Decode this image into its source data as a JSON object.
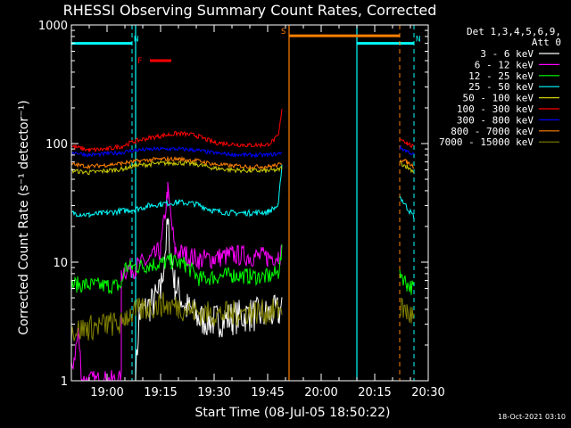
{
  "chart_data": {
    "type": "line",
    "title": "RHESSI Observing Summary Count Rates, Corrected",
    "xlabel": "Start Time (08-Jul-05 18:50:22)",
    "ylabel": "Corrected Count Rate (s⁻¹ detector⁻¹)",
    "ylog": true,
    "ylim": [
      1,
      1000
    ],
    "xlim": [
      "18:50",
      "20:30"
    ],
    "xticks": [
      "19:00",
      "19:15",
      "19:30",
      "19:45",
      "20:00",
      "20:15",
      "20:30"
    ],
    "yticks": [
      "1",
      "10",
      "100",
      "1000"
    ],
    "legend_header": [
      "Det 1,3,4,5,6,9,",
      "Att 0"
    ],
    "legend_position": "right",
    "footer": "18-Oct-2021 03:10",
    "series": [
      {
        "name": "3 - 6 keV",
        "color": "#ffffff",
        "points": [
          [
            "18:50",
            null
          ],
          [
            "19:08",
            null
          ],
          [
            "19:08",
            1.0
          ],
          [
            "19:09",
            3.6
          ],
          [
            "19:12",
            4.3
          ],
          [
            "19:15",
            5.5
          ],
          [
            "19:17",
            20
          ],
          [
            "19:19",
            6.5
          ],
          [
            "19:22",
            4.2
          ],
          [
            "19:26",
            3.3
          ],
          [
            "19:30",
            3.2
          ],
          [
            "19:35",
            3.4
          ],
          [
            "19:40",
            3.6
          ],
          [
            "19:45",
            3.6
          ],
          [
            "19:48",
            3.8
          ],
          [
            "19:49",
            4.2
          ]
        ]
      },
      {
        "name": "6 - 12 keV",
        "color": "#ff00ff",
        "points": [
          [
            "18:50",
            1.2
          ],
          [
            "18:52",
            2.5
          ],
          [
            "18:53",
            1.0
          ],
          [
            "19:04",
            1.0
          ],
          [
            "19:04",
            8.5
          ],
          [
            "19:08",
            9.0
          ],
          [
            "19:12",
            10.5
          ],
          [
            "19:15",
            12.5
          ],
          [
            "19:17",
            40
          ],
          [
            "19:19",
            12.5
          ],
          [
            "19:22",
            11.5
          ],
          [
            "19:26",
            10.5
          ],
          [
            "19:30",
            10.8
          ],
          [
            "19:35",
            11.5
          ],
          [
            "19:40",
            11.2
          ],
          [
            "19:45",
            11.0
          ],
          [
            "19:48",
            11.5
          ],
          [
            "19:49",
            12
          ]
        ]
      },
      {
        "name": "12 - 25 keV",
        "color": "#00ff00",
        "points": [
          [
            "18:50",
            6.5
          ],
          [
            "19:00",
            6.3
          ],
          [
            "19:04",
            6.3
          ],
          [
            "19:05",
            9.0
          ],
          [
            "19:10",
            9.3
          ],
          [
            "19:15",
            9.8
          ],
          [
            "19:18",
            10.2
          ],
          [
            "19:22",
            9.5
          ],
          [
            "19:26",
            7.2
          ],
          [
            "19:30",
            7.5
          ],
          [
            "19:35",
            7.8
          ],
          [
            "19:40",
            7.6
          ],
          [
            "19:45",
            7.5
          ],
          [
            "19:48",
            8.2
          ],
          [
            "19:49",
            12
          ],
          [
            "20:22",
            null
          ],
          [
            "20:22",
            8.5
          ],
          [
            "20:24",
            6.5
          ],
          [
            "20:26",
            6.0
          ]
        ]
      },
      {
        "name": "25 - 50 keV",
        "color": "#00ffff",
        "points": [
          [
            "18:50",
            26
          ],
          [
            "18:55",
            25
          ],
          [
            "19:00",
            26
          ],
          [
            "19:04",
            27
          ],
          [
            "19:08",
            28
          ],
          [
            "19:12",
            30
          ],
          [
            "19:15",
            31
          ],
          [
            "19:20",
            32
          ],
          [
            "19:25",
            31
          ],
          [
            "19:30",
            27
          ],
          [
            "19:35",
            26
          ],
          [
            "19:40",
            26
          ],
          [
            "19:45",
            26.5
          ],
          [
            "19:48",
            30
          ],
          [
            "19:49",
            68
          ],
          [
            "20:22",
            null
          ],
          [
            "20:22",
            36
          ],
          [
            "20:24",
            29
          ],
          [
            "20:26",
            24
          ]
        ]
      },
      {
        "name": "50 - 100 keV",
        "color": "#cccc00",
        "points": [
          [
            "18:50",
            59
          ],
          [
            "18:55",
            57
          ],
          [
            "19:00",
            59
          ],
          [
            "19:04",
            61
          ],
          [
            "19:08",
            65
          ],
          [
            "19:12",
            67
          ],
          [
            "19:15",
            68
          ],
          [
            "19:20",
            69
          ],
          [
            "19:25",
            67
          ],
          [
            "19:30",
            62
          ],
          [
            "19:35",
            60
          ],
          [
            "19:40",
            59
          ],
          [
            "19:45",
            59
          ],
          [
            "19:48",
            60
          ],
          [
            "19:49",
            63
          ],
          [
            "20:22",
            null
          ],
          [
            "20:22",
            69
          ],
          [
            "20:24",
            64
          ],
          [
            "20:26",
            58
          ]
        ]
      },
      {
        "name": "100 - 300 keV",
        "color": "#ff0000",
        "points": [
          [
            "18:50",
            95
          ],
          [
            "18:55",
            88
          ],
          [
            "19:00",
            90
          ],
          [
            "19:04",
            95
          ],
          [
            "19:08",
            105
          ],
          [
            "19:12",
            112
          ],
          [
            "19:15",
            116
          ],
          [
            "19:20",
            122
          ],
          [
            "19:25",
            117
          ],
          [
            "19:30",
            102
          ],
          [
            "19:35",
            99
          ],
          [
            "19:40",
            97
          ],
          [
            "19:45",
            98
          ],
          [
            "19:48",
            115
          ],
          [
            "19:49",
            190
          ],
          [
            "20:22",
            null
          ],
          [
            "20:22",
            112
          ],
          [
            "20:24",
            102
          ],
          [
            "20:26",
            92
          ]
        ]
      },
      {
        "name": "300 - 800 keV",
        "color": "#0000ff",
        "points": [
          [
            "18:50",
            85
          ],
          [
            "18:55",
            80
          ],
          [
            "19:00",
            82
          ],
          [
            "19:04",
            84
          ],
          [
            "19:08",
            88
          ],
          [
            "19:12",
            89
          ],
          [
            "19:15",
            90
          ],
          [
            "19:20",
            90
          ],
          [
            "19:25",
            88
          ],
          [
            "19:30",
            83
          ],
          [
            "19:35",
            81
          ],
          [
            "19:40",
            80
          ],
          [
            "19:45",
            80
          ],
          [
            "19:48",
            82
          ],
          [
            "19:49",
            85
          ],
          [
            "20:22",
            null
          ],
          [
            "20:22",
            92
          ],
          [
            "20:24",
            87
          ],
          [
            "20:26",
            80
          ]
        ]
      },
      {
        "name": "800 - 7000 keV",
        "color": "#ff8000",
        "points": [
          [
            "18:50",
            67
          ],
          [
            "18:55",
            64
          ],
          [
            "19:00",
            66
          ],
          [
            "19:04",
            68
          ],
          [
            "19:08",
            71
          ],
          [
            "19:12",
            73
          ],
          [
            "19:15",
            74
          ],
          [
            "19:20",
            74
          ],
          [
            "19:25",
            72
          ],
          [
            "19:30",
            67
          ],
          [
            "19:35",
            65
          ],
          [
            "19:40",
            64
          ],
          [
            "19:45",
            64
          ],
          [
            "19:48",
            66
          ],
          [
            "19:49",
            69
          ],
          [
            "20:22",
            null
          ],
          [
            "20:22",
            74
          ],
          [
            "20:24",
            70
          ],
          [
            "20:26",
            64
          ]
        ]
      },
      {
        "name": "7000 - 15000 keV",
        "color": "#808000",
        "points": [
          [
            "18:50",
            2.6
          ],
          [
            "18:55",
            2.8
          ],
          [
            "19:00",
            3.0
          ],
          [
            "19:04",
            3.0
          ],
          [
            "19:05",
            3.5
          ],
          [
            "19:10",
            4.0
          ],
          [
            "19:15",
            4.4
          ],
          [
            "19:20",
            4.2
          ],
          [
            "19:25",
            3.8
          ],
          [
            "19:30",
            3.6
          ],
          [
            "19:35",
            3.7
          ],
          [
            "19:40",
            3.8
          ],
          [
            "19:45",
            3.8
          ],
          [
            "19:48",
            3.9
          ],
          [
            "19:49",
            4.0
          ],
          [
            "20:22",
            null
          ],
          [
            "20:22",
            4.2
          ],
          [
            "20:24",
            3.8
          ],
          [
            "20:26",
            3.4
          ]
        ]
      }
    ],
    "flags": [
      {
        "label": "N",
        "color": "#00ffff",
        "start": "18:50",
        "end": "19:07",
        "y": 700,
        "markers": [
          "19:07"
        ]
      },
      {
        "label": "N",
        "color": "#00ffff",
        "start": "20:10",
        "end": "20:26",
        "y": 700,
        "markers": [
          "20:26"
        ]
      },
      {
        "label": "S",
        "color": "#ff8000",
        "start": "19:51",
        "end": "20:22",
        "y": 810,
        "markers": [
          "20:22"
        ]
      },
      {
        "label": "F",
        "color": "#ff0000",
        "start": "19:12",
        "end": "19:18",
        "y": 500,
        "markers": []
      }
    ],
    "solid_lines": [
      {
        "x": "19:08",
        "color": "#00ffff"
      },
      {
        "x": "19:51",
        "color": "#ff8000"
      },
      {
        "x": "20:10",
        "color": "#00ffff"
      }
    ]
  }
}
